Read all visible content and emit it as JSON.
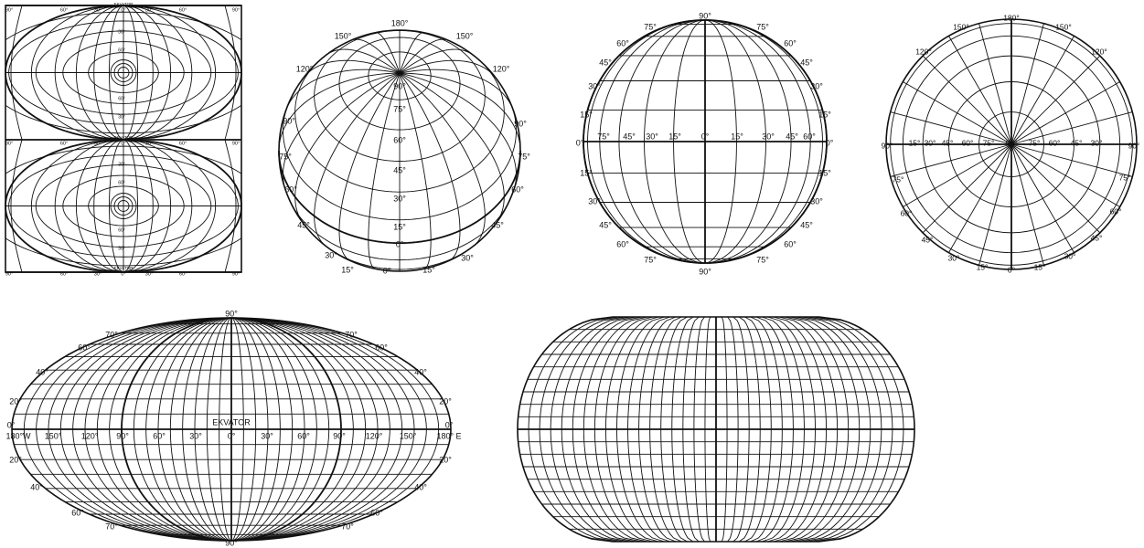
{
  "panels": [
    {
      "id": "transverse-cylindrical-grid",
      "top_labels": [
        "90°",
        "60°",
        "30°",
        "0°",
        "30°",
        "60°",
        "90°"
      ],
      "top_caption": "EKVATOR",
      "mid_labels": [
        "90°",
        "60°",
        "30°",
        "0°",
        "30°",
        "60°",
        "90°"
      ],
      "mid_caption": "EKVATOR",
      "bottom_labels": [
        "90°",
        "60°",
        "30°",
        "0°",
        "30°",
        "60°",
        "90°"
      ],
      "bottom_caption": "EKVATOR",
      "upper_pole_labels": [
        "30°",
        "60°",
        "60°",
        "30°"
      ],
      "lower_pole_labels": [
        "30°",
        "60°",
        "60°",
        "30°"
      ]
    },
    {
      "id": "oblique-orthographic-globe",
      "labels": [
        "180°",
        "150°",
        "150°",
        "120°",
        "120°",
        "90°",
        "90°",
        "75°",
        "75°",
        "60°",
        "60°",
        "45°",
        "45°",
        "30°",
        "30°",
        "15°",
        "15°",
        "0°",
        "90°",
        "75°",
        "60°",
        "45°",
        "30°",
        "15°",
        "0°"
      ]
    },
    {
      "id": "equatorial-orthographic-globe",
      "labels": [
        "90°",
        "75°",
        "75°",
        "60°",
        "60°",
        "45°",
        "45°",
        "30°",
        "30°",
        "15°",
        "15°",
        "0°",
        "0°",
        "15°",
        "15°",
        "30°",
        "30°",
        "45°",
        "45°",
        "60°",
        "60°",
        "75°",
        "75°",
        "90°"
      ],
      "equator_labels": [
        "75°",
        "45°",
        "30°",
        "15°",
        "0°",
        "15°",
        "30°",
        "45°",
        "60°"
      ]
    },
    {
      "id": "polar-azimuthal-globe",
      "labels": [
        "180°",
        "150°",
        "150°",
        "120°",
        "120°",
        "90°",
        "90°",
        "75°",
        "75°",
        "60°",
        "60°",
        "45°",
        "45°",
        "30°",
        "30°",
        "15°",
        "15°",
        "0°"
      ],
      "center_labels": [
        "15°",
        "30°",
        "45°",
        "60°",
        "75°",
        "90°",
        "75°",
        "60°",
        "45°",
        "30°"
      ]
    },
    {
      "id": "mollweide-projection",
      "top": "90°",
      "bottom": "90°",
      "left_labels": [
        "70°",
        "60°",
        "40°",
        "20°",
        "0°",
        "20°",
        "40°",
        "60°",
        "70°"
      ],
      "right_labels": [
        "70°",
        "60°",
        "40°",
        "20°",
        "0°",
        "20°",
        "40°",
        "60°",
        "70°"
      ],
      "equator_caption": "EKVATOR",
      "equator_labels": [
        "180°W",
        "150°",
        "120°",
        "90°",
        "60°",
        "30°",
        "0°",
        "30°",
        "60°",
        "90°",
        "120°",
        "150°",
        "180° E"
      ]
    },
    {
      "id": "flat-polar-projection"
    }
  ]
}
